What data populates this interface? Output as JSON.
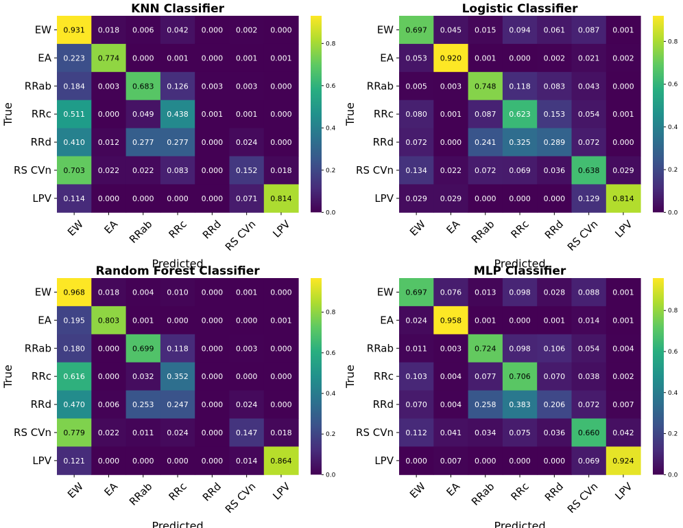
{
  "chart_data": [
    {
      "type": "heatmap",
      "title": "KNN Classifier",
      "xlabel": "Predicted",
      "ylabel": "True",
      "x_categories": [
        "EW",
        "EA",
        "RRab",
        "RRc",
        "RRd",
        "RS CVn",
        "LPV"
      ],
      "y_categories": [
        "EW",
        "EA",
        "RRab",
        "RRc",
        "RRd",
        "RS CVn",
        "LPV"
      ],
      "values": [
        [
          0.931,
          0.018,
          0.006,
          0.042,
          0.0,
          0.002,
          0.0
        ],
        [
          0.223,
          0.774,
          0.0,
          0.001,
          0.0,
          0.001,
          0.001
        ],
        [
          0.184,
          0.003,
          0.683,
          0.126,
          0.003,
          0.003,
          0.0
        ],
        [
          0.511,
          0.0,
          0.049,
          0.438,
          0.001,
          0.001,
          0.0
        ],
        [
          0.41,
          0.012,
          0.277,
          0.277,
          0.0,
          0.024,
          0.0
        ],
        [
          0.703,
          0.022,
          0.022,
          0.083,
          0.0,
          0.152,
          0.018
        ],
        [
          0.114,
          0.0,
          0.0,
          0.0,
          0.0,
          0.071,
          0.814
        ]
      ],
      "colorbar": {
        "vmin": 0,
        "vmax": 0.931,
        "ticks": [
          "0.0",
          "0.2",
          "0.4",
          "0.6",
          "0.8"
        ]
      }
    },
    {
      "type": "heatmap",
      "title": "Logistic Classifier",
      "xlabel": "Predicted",
      "ylabel": "True",
      "x_categories": [
        "EW",
        "EA",
        "RRab",
        "RRc",
        "RRd",
        "RS CVn",
        "LPV"
      ],
      "y_categories": [
        "EW",
        "EA",
        "RRab",
        "RRc",
        "RRd",
        "RS CVn",
        "LPV"
      ],
      "values": [
        [
          0.697,
          0.045,
          0.015,
          0.094,
          0.061,
          0.087,
          0.001
        ],
        [
          0.053,
          0.92,
          0.001,
          0.0,
          0.002,
          0.021,
          0.002
        ],
        [
          0.005,
          0.003,
          0.748,
          0.118,
          0.083,
          0.043,
          0.0
        ],
        [
          0.08,
          0.001,
          0.087,
          0.623,
          0.153,
          0.054,
          0.001
        ],
        [
          0.072,
          0.0,
          0.241,
          0.325,
          0.289,
          0.072,
          0.0
        ],
        [
          0.134,
          0.022,
          0.072,
          0.069,
          0.036,
          0.638,
          0.029
        ],
        [
          0.029,
          0.029,
          0.0,
          0.0,
          0.0,
          0.129,
          0.814
        ]
      ],
      "colorbar": {
        "vmin": 0,
        "vmax": 0.92,
        "ticks": [
          "0.0",
          "0.2",
          "0.4",
          "0.6",
          "0.8"
        ]
      }
    },
    {
      "type": "heatmap",
      "title": "Random Forest Classifier",
      "xlabel": "Predicted",
      "ylabel": "True",
      "x_categories": [
        "EW",
        "EA",
        "RRab",
        "RRc",
        "RRd",
        "RS CVn",
        "LPV"
      ],
      "y_categories": [
        "EW",
        "EA",
        "RRab",
        "RRc",
        "RRd",
        "RS CVn",
        "LPV"
      ],
      "values": [
        [
          0.968,
          0.018,
          0.004,
          0.01,
          0.0,
          0.001,
          0.0
        ],
        [
          0.195,
          0.803,
          0.001,
          0.0,
          0.0,
          0.0,
          0.001
        ],
        [
          0.18,
          0.0,
          0.699,
          0.118,
          0.0,
          0.003,
          0.0
        ],
        [
          0.616,
          0.0,
          0.032,
          0.352,
          0.0,
          0.0,
          0.0
        ],
        [
          0.47,
          0.006,
          0.253,
          0.247,
          0.0,
          0.024,
          0.0
        ],
        [
          0.779,
          0.022,
          0.011,
          0.024,
          0.0,
          0.147,
          0.018
        ],
        [
          0.121,
          0.0,
          0.0,
          0.0,
          0.0,
          0.014,
          0.864
        ]
      ],
      "colorbar": {
        "vmin": 0,
        "vmax": 0.968,
        "ticks": [
          "0.0",
          "0.2",
          "0.4",
          "0.6",
          "0.8"
        ]
      }
    },
    {
      "type": "heatmap",
      "title": "MLP Classifier",
      "xlabel": "Predicted",
      "ylabel": "True",
      "x_categories": [
        "EW",
        "EA",
        "RRab",
        "RRc",
        "RRd",
        "RS CVn",
        "LPV"
      ],
      "y_categories": [
        "EW",
        "EA",
        "RRab",
        "RRc",
        "RRd",
        "RS CVn",
        "LPV"
      ],
      "values": [
        [
          0.697,
          0.076,
          0.013,
          0.098,
          0.028,
          0.088,
          0.001
        ],
        [
          0.024,
          0.958,
          0.001,
          0.0,
          0.001,
          0.014,
          0.001
        ],
        [
          0.011,
          0.003,
          0.724,
          0.098,
          0.106,
          0.054,
          0.004
        ],
        [
          0.103,
          0.004,
          0.077,
          0.706,
          0.07,
          0.038,
          0.002
        ],
        [
          0.07,
          0.004,
          0.258,
          0.383,
          0.206,
          0.072,
          0.007
        ],
        [
          0.112,
          0.041,
          0.034,
          0.075,
          0.036,
          0.66,
          0.042
        ],
        [
          0.0,
          0.007,
          0.0,
          0.0,
          0.0,
          0.069,
          0.924
        ]
      ],
      "colorbar": {
        "vmin": 0,
        "vmax": 0.958,
        "ticks": [
          "0.0",
          "0.2",
          "0.4",
          "0.6",
          "0.8"
        ]
      }
    }
  ]
}
